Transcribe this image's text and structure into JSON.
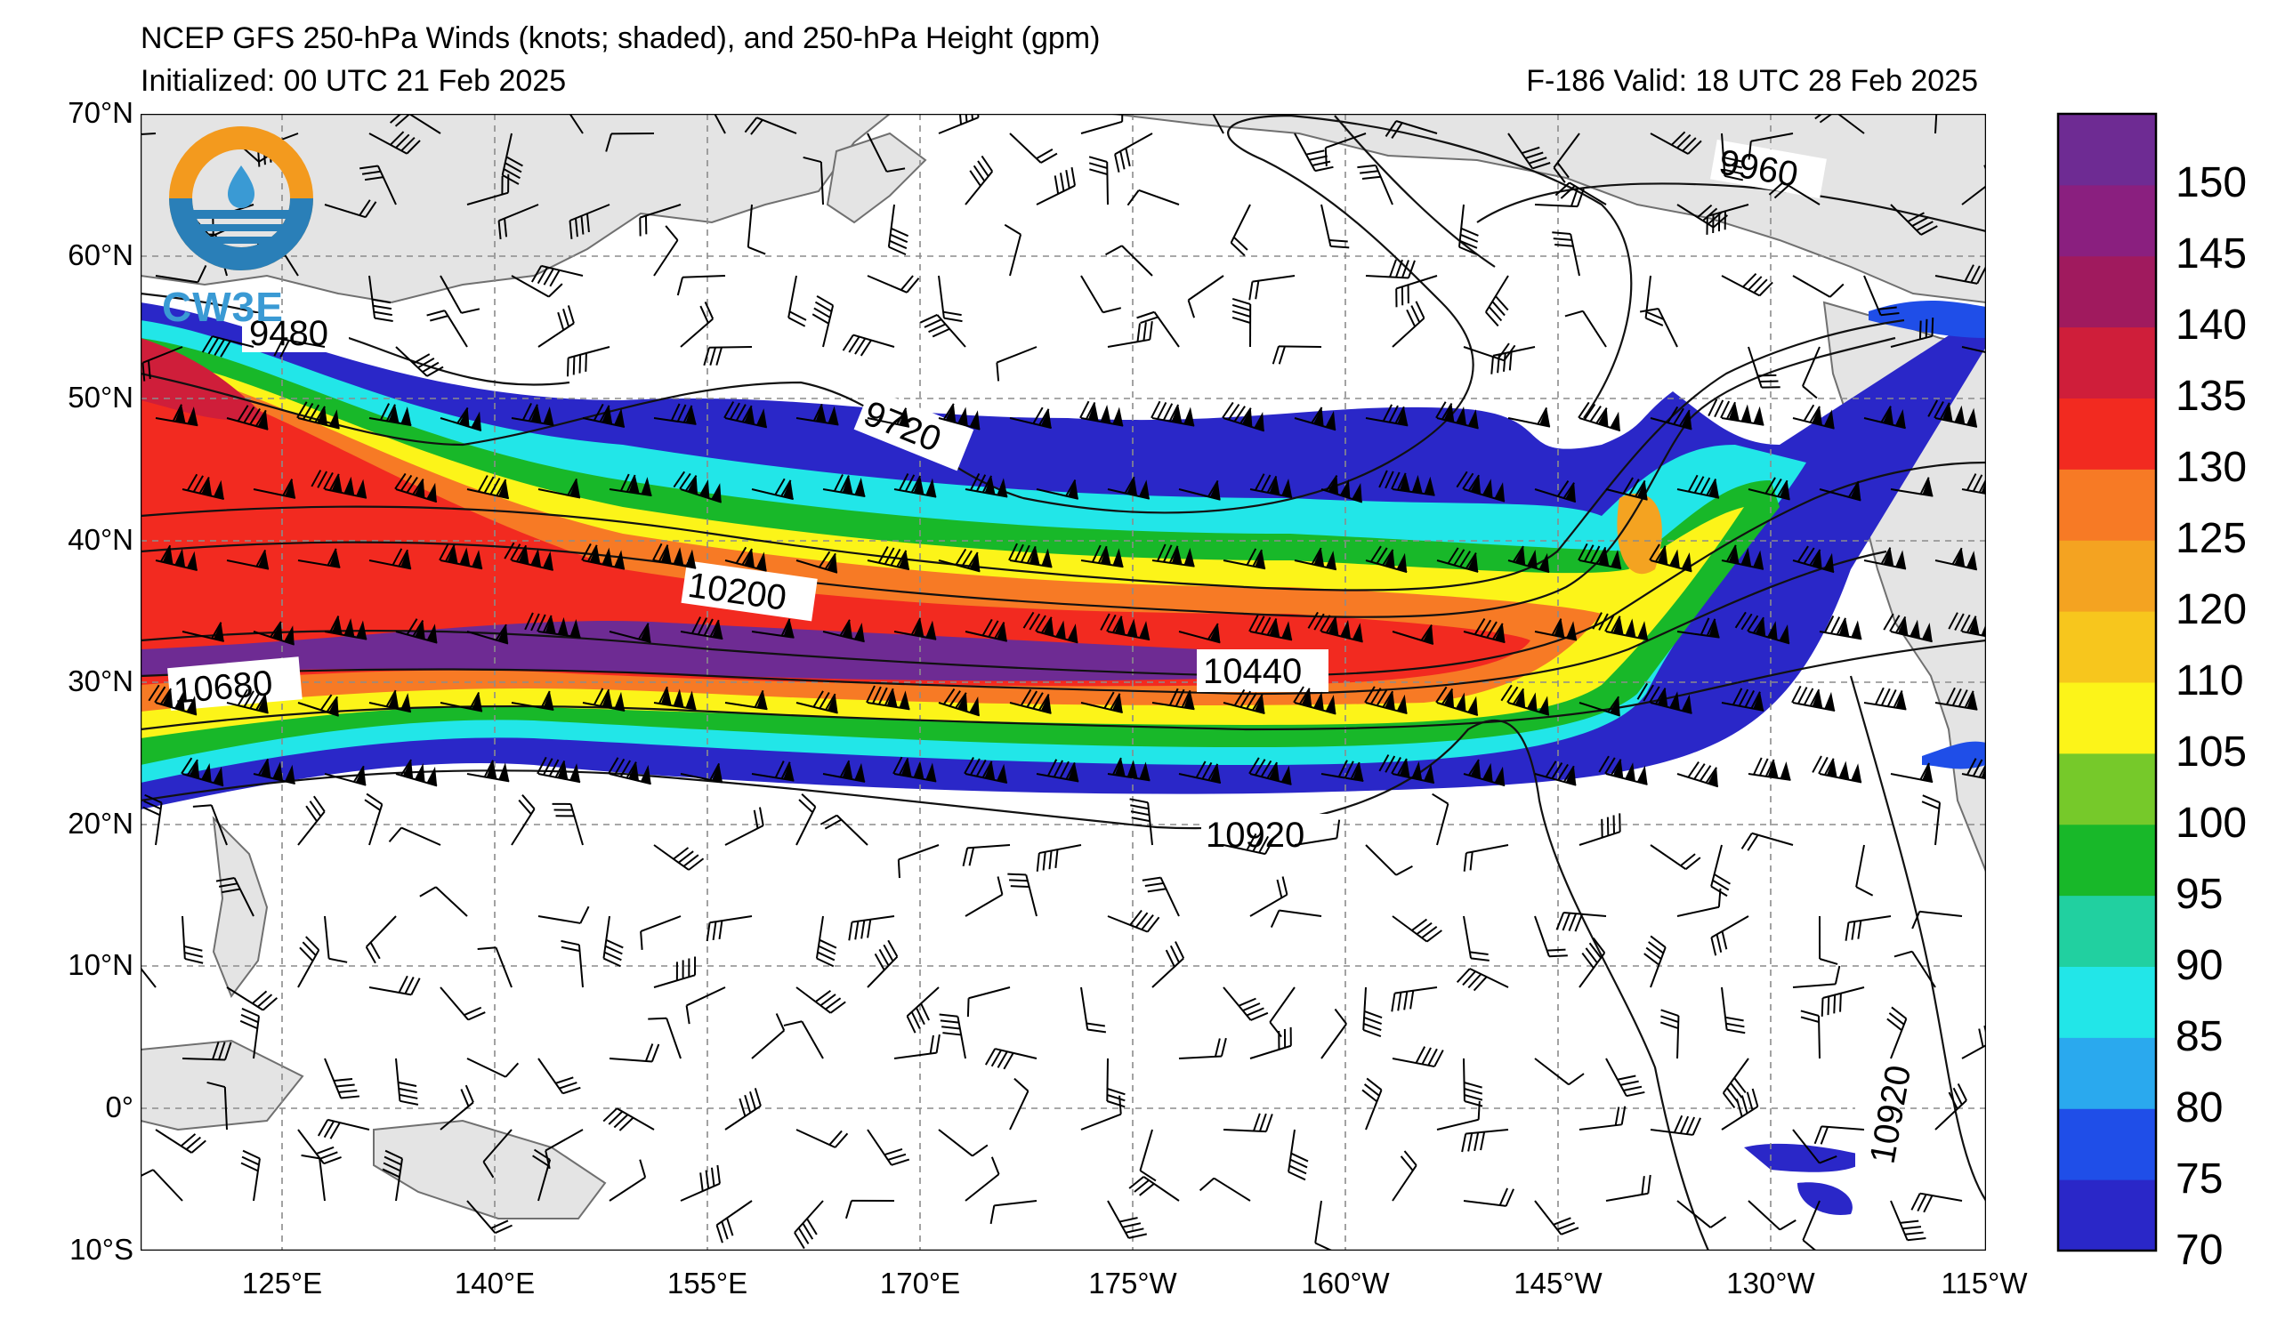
{
  "header": {
    "title": "NCEP GFS 250-hPa Winds (knots; shaded), and 250-hPa Height (gpm)",
    "initialized": "Initialized: 00 UTC 21 Feb 2025",
    "valid": "F-186  Valid: 18 UTC 28 Feb 2025"
  },
  "logo": {
    "text": "CW3E",
    "accent_color": "#f39a1e",
    "water_color": "#2a7fb8",
    "icon": "water-drop-icon"
  },
  "axes": {
    "lat_labels": [
      "70°N",
      "60°N",
      "50°N",
      "40°N",
      "30°N",
      "20°N",
      "10°N",
      "0°",
      "10°S"
    ],
    "lon_labels": [
      "125°E",
      "140°E",
      "155°E",
      "170°E",
      "175°W",
      "160°W",
      "145°W",
      "130°W",
      "115°W"
    ],
    "lat_range": [
      -10,
      70
    ],
    "lon_range": [
      "115°E",
      "115°W"
    ]
  },
  "colorbar": {
    "ticks": [
      "70",
      "75",
      "80",
      "85",
      "90",
      "95",
      "100",
      "105",
      "110",
      "120",
      "125",
      "130",
      "135",
      "140",
      "145",
      "150"
    ],
    "colors": [
      "#2a27c8",
      "#1f4ee8",
      "#2aa9ee",
      "#22e6e8",
      "#21d0a0",
      "#18b829",
      "#76c92a",
      "#fcf419",
      "#f7c61d",
      "#f4a321",
      "#f77a25",
      "#f22a20",
      "#cf1e3a",
      "#a01a5e",
      "#8a1f7f",
      "#6e2b93"
    ],
    "units": "knots"
  },
  "height_labels": [
    "9480",
    "9720",
    "9960",
    "10200",
    "10440",
    "10680",
    "10920",
    "10920"
  ],
  "colors": {
    "land": "#e4e4e4",
    "coast": "#707070",
    "grid": "#8c8c8c"
  }
}
